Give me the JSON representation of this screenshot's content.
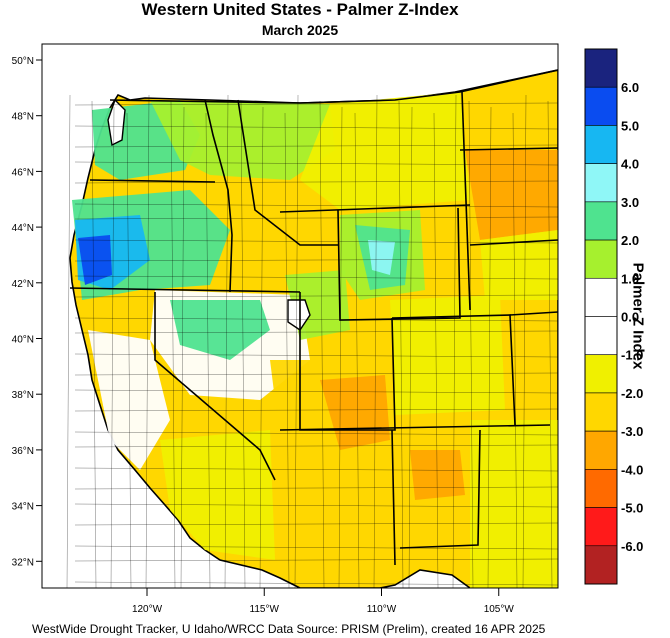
{
  "header": {
    "title": "Western United States - Palmer Z-Index",
    "subtitle": "March 2025"
  },
  "footer": {
    "credit": "WestWide Drought Tracker, U Idaho/WRCC Data Source: PRISM (Prelim), created 16 APR 2025"
  },
  "map": {
    "lat_ticks": [
      {
        "value": 50,
        "label": "50°N"
      },
      {
        "value": 48,
        "label": "48°N"
      },
      {
        "value": 46,
        "label": "46°N"
      },
      {
        "value": 44,
        "label": "44°N"
      },
      {
        "value": 42,
        "label": "42°N"
      },
      {
        "value": 40,
        "label": "40°N"
      },
      {
        "value": 38,
        "label": "38°N"
      },
      {
        "value": 36,
        "label": "36°N"
      },
      {
        "value": 34,
        "label": "34°N"
      },
      {
        "value": 32,
        "label": "32°N"
      }
    ],
    "lon_ticks": [
      {
        "value": -120,
        "label": "120°W"
      },
      {
        "value": -115,
        "label": "115°W"
      },
      {
        "value": -110,
        "label": "110°W"
      },
      {
        "value": -105,
        "label": "105°W"
      }
    ],
    "colors": {
      "very_wet": "#1a237e",
      "wet_blue": "#0a4cf0",
      "wet_cyan": "#17b7f2",
      "wet_light": "#8ff7f7",
      "wet_green": "#4fe38f",
      "wet_lime": "#a6f02e",
      "dry_yellow": "#f0f000",
      "dry_gold": "#ffd700",
      "dry_orange": "#ffa700",
      "very_dry": "#ff6a00"
    }
  },
  "colorbar": {
    "title": "Palmer Z Index",
    "bins": [
      {
        "color": "#1a237e"
      },
      {
        "color": "#0a4cf0"
      },
      {
        "color": "#17b7f2"
      },
      {
        "color": "#8ff7f7"
      },
      {
        "color": "#4fe38f"
      },
      {
        "color": "#a6f02e"
      },
      {
        "color": "#ffffff"
      },
      {
        "color": "#ffffff"
      },
      {
        "color": "#f0f000"
      },
      {
        "color": "#ffd700"
      },
      {
        "color": "#ffa700"
      },
      {
        "color": "#ff6a00"
      },
      {
        "color": "#ff1a1a"
      },
      {
        "color": "#b22222"
      }
    ],
    "labels": [
      "6.0",
      "5.0",
      "4.0",
      "3.0",
      "2.0",
      "1.0",
      "0.0",
      "-1.0",
      "-2.0",
      "-3.0",
      "-4.0",
      "-5.0",
      "-6.0"
    ]
  }
}
